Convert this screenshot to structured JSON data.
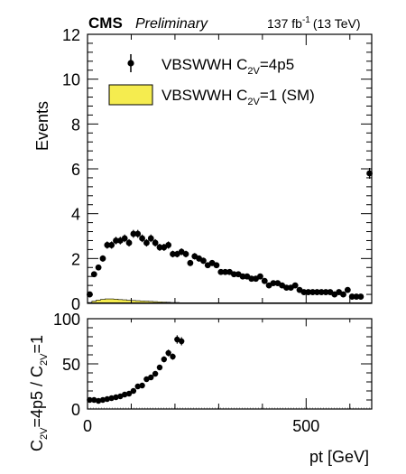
{
  "header": {
    "experiment": "CMS",
    "tag": "Preliminary",
    "lumi_value": "137 fb",
    "lumi_exp": "-1",
    "lumi_energy": "(13 TeV)"
  },
  "colors": {
    "signal_fill": "#f5ec4f",
    "points": "#000000",
    "frame": "#000000"
  },
  "chart_data": [
    {
      "type": "scatter",
      "panel": "top",
      "ylabel": "Events",
      "xlim": [
        0,
        650
      ],
      "ylim": [
        0,
        12
      ],
      "yticks": [
        0,
        2,
        4,
        6,
        8,
        10,
        12
      ],
      "legend": [
        {
          "label_main": "VBSWWH C",
          "label_sub": "2V",
          "label_tail": "=4p5",
          "style": "marker"
        },
        {
          "label_main": "VBSWWH C",
          "label_sub": "2V",
          "label_tail": "=1 (SM)",
          "style": "fill"
        }
      ],
      "series": [
        {
          "name": "VBSWWH C2V=4p5",
          "style": "marker",
          "x": [
            5,
            15,
            25,
            35,
            45,
            55,
            65,
            75,
            85,
            95,
            105,
            115,
            125,
            135,
            145,
            155,
            165,
            175,
            185,
            195,
            205,
            215,
            225,
            235,
            245,
            255,
            265,
            275,
            285,
            295,
            305,
            315,
            325,
            335,
            345,
            355,
            365,
            375,
            385,
            395,
            405,
            415,
            425,
            435,
            445,
            455,
            465,
            475,
            485,
            495,
            505,
            515,
            525,
            535,
            545,
            555,
            565,
            575,
            585,
            595,
            605,
            615,
            625,
            645
          ],
          "y": [
            0.4,
            1.3,
            1.6,
            2.0,
            2.6,
            2.6,
            2.8,
            2.8,
            2.9,
            2.7,
            3.1,
            3.1,
            2.9,
            2.7,
            2.9,
            2.7,
            2.5,
            2.5,
            2.6,
            2.2,
            2.2,
            2.3,
            2.2,
            1.8,
            2.1,
            2.0,
            1.9,
            1.7,
            1.8,
            1.7,
            1.4,
            1.4,
            1.4,
            1.3,
            1.3,
            1.2,
            1.2,
            1.1,
            1.1,
            1.2,
            1.0,
            0.8,
            0.9,
            0.9,
            0.8,
            0.7,
            0.7,
            0.8,
            0.6,
            0.5,
            0.5,
            0.5,
            0.5,
            0.5,
            0.5,
            0.5,
            0.4,
            0.5,
            0.4,
            0.6,
            0.3,
            0.3,
            0.3,
            5.8
          ]
        },
        {
          "name": "VBSWWH C2V=1 (SM)",
          "style": "fill",
          "bin_width": 10,
          "x": [
            5,
            15,
            25,
            35,
            45,
            55,
            65,
            75,
            85,
            95,
            105,
            115,
            125,
            135,
            145,
            155,
            165,
            175,
            185,
            195,
            205,
            215,
            225,
            235,
            245,
            255,
            265
          ],
          "y": [
            0.04,
            0.1,
            0.15,
            0.18,
            0.2,
            0.2,
            0.19,
            0.17,
            0.16,
            0.14,
            0.13,
            0.12,
            0.11,
            0.1,
            0.09,
            0.08,
            0.07,
            0.06,
            0.05,
            0.04,
            0.04,
            0.03,
            0.03,
            0.02,
            0.02,
            0.01,
            0.01
          ]
        }
      ]
    },
    {
      "type": "scatter",
      "panel": "bottom",
      "xlabel": "pt [GeV]",
      "ylabel_parts": [
        "C",
        "2V",
        "=4p5 / C",
        "2V",
        "=1"
      ],
      "xlim": [
        0,
        650
      ],
      "ylim": [
        0,
        100
      ],
      "yticks": [
        0,
        50,
        100
      ],
      "xticks": [
        0,
        500
      ],
      "series": [
        {
          "name": "ratio",
          "style": "marker",
          "x": [
            5,
            15,
            25,
            35,
            45,
            55,
            65,
            75,
            85,
            95,
            105,
            115,
            125,
            135,
            145,
            155,
            165,
            175,
            185,
            195,
            205,
            215
          ],
          "y": [
            10,
            10,
            9,
            10,
            11,
            12,
            13,
            14,
            16,
            17,
            20,
            25,
            26,
            33,
            35,
            39,
            46,
            55,
            62,
            58,
            77,
            75
          ]
        }
      ]
    }
  ]
}
